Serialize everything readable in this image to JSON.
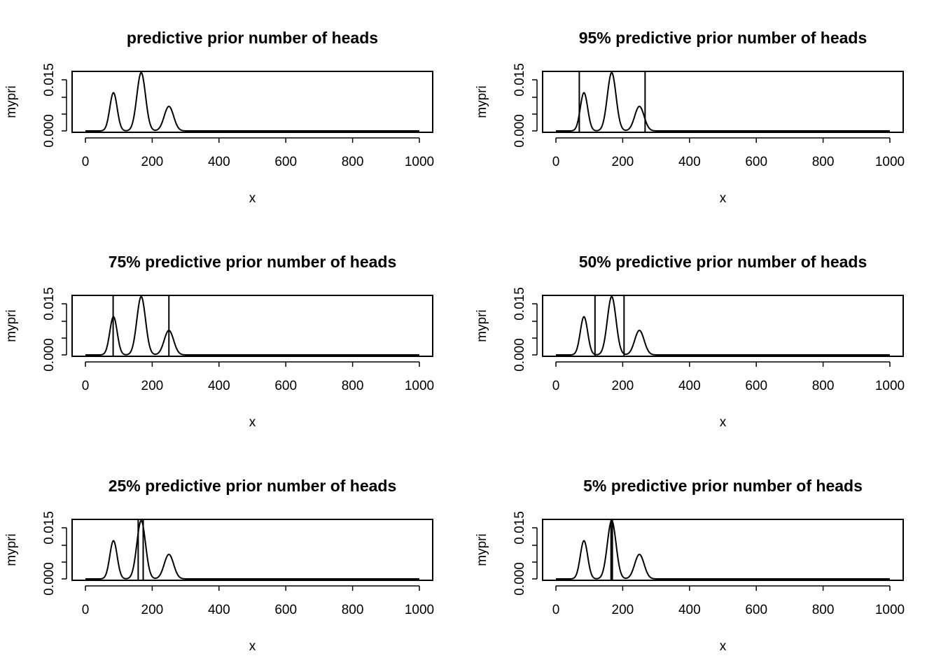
{
  "chart_data": [
    {
      "type": "line",
      "title": "predictive prior number of heads",
      "xlabel": "x",
      "ylabel": "mypri",
      "xlim": [
        0,
        1000
      ],
      "ylim": [
        0,
        0.017
      ],
      "xticks": [
        "0",
        "200",
        "400",
        "600",
        "800",
        "1000"
      ],
      "yticks": [
        "0.000",
        "0.015"
      ],
      "grid": false,
      "series": [
        {
          "peaks": [
            {
              "mu": 84,
              "sd": 11,
              "height": 0.0112
            },
            {
              "mu": 167,
              "sd": 13,
              "height": 0.0171
            },
            {
              "mu": 250,
              "sd": 14,
              "height": 0.0072
            }
          ]
        }
      ],
      "interval": []
    },
    {
      "type": "line",
      "title": "95% predictive prior number of heads",
      "xlabel": "x",
      "ylabel": "mypri",
      "xlim": [
        0,
        1000
      ],
      "ylim": [
        0,
        0.017
      ],
      "xticks": [
        "0",
        "200",
        "400",
        "600",
        "800",
        "1000"
      ],
      "yticks": [
        "0.000",
        "0.015"
      ],
      "grid": false,
      "series": [
        {
          "peaks": [
            {
              "mu": 84,
              "sd": 11,
              "height": 0.0112
            },
            {
              "mu": 167,
              "sd": 13,
              "height": 0.0171
            },
            {
              "mu": 250,
              "sd": 14,
              "height": 0.0072
            }
          ]
        }
      ],
      "interval": [
        70,
        267
      ]
    },
    {
      "type": "line",
      "title": "75% predictive prior number of heads",
      "xlabel": "x",
      "ylabel": "mypri",
      "xlim": [
        0,
        1000
      ],
      "ylim": [
        0,
        0.017
      ],
      "xticks": [
        "0",
        "200",
        "400",
        "600",
        "800",
        "1000"
      ],
      "yticks": [
        "0.000",
        "0.015"
      ],
      "grid": false,
      "series": [
        {
          "peaks": [
            {
              "mu": 84,
              "sd": 11,
              "height": 0.0112
            },
            {
              "mu": 167,
              "sd": 13,
              "height": 0.0171
            },
            {
              "mu": 250,
              "sd": 14,
              "height": 0.0072
            }
          ]
        }
      ],
      "interval": [
        83,
        250
      ]
    },
    {
      "type": "line",
      "title": "50% predictive prior number of heads",
      "xlabel": "x",
      "ylabel": "mypri",
      "xlim": [
        0,
        1000
      ],
      "ylim": [
        0,
        0.017
      ],
      "xticks": [
        "0",
        "200",
        "400",
        "600",
        "800",
        "1000"
      ],
      "yticks": [
        "0.000",
        "0.015"
      ],
      "grid": false,
      "series": [
        {
          "peaks": [
            {
              "mu": 84,
              "sd": 11,
              "height": 0.0112
            },
            {
              "mu": 167,
              "sd": 13,
              "height": 0.0171
            },
            {
              "mu": 250,
              "sd": 14,
              "height": 0.0072
            }
          ]
        }
      ],
      "interval": [
        117,
        204
      ]
    },
    {
      "type": "line",
      "title": "25% predictive prior number of heads",
      "xlabel": "x",
      "ylabel": "mypri",
      "xlim": [
        0,
        1000
      ],
      "ylim": [
        0,
        0.017
      ],
      "xticks": [
        "0",
        "200",
        "400",
        "600",
        "800",
        "1000"
      ],
      "yticks": [
        "0.000",
        "0.015"
      ],
      "grid": false,
      "series": [
        {
          "peaks": [
            {
              "mu": 84,
              "sd": 11,
              "height": 0.0112
            },
            {
              "mu": 167,
              "sd": 13,
              "height": 0.0171
            },
            {
              "mu": 250,
              "sd": 14,
              "height": 0.0072
            }
          ]
        }
      ],
      "interval": [
        158,
        173
      ]
    },
    {
      "type": "line",
      "title": "5% predictive prior number of heads",
      "xlabel": "x",
      "ylabel": "mypri",
      "xlim": [
        0,
        1000
      ],
      "ylim": [
        0,
        0.017
      ],
      "xticks": [
        "0",
        "200",
        "400",
        "600",
        "800",
        "1000"
      ],
      "yticks": [
        "0.000",
        "0.015"
      ],
      "grid": false,
      "series": [
        {
          "peaks": [
            {
              "mu": 84,
              "sd": 11,
              "height": 0.0112
            },
            {
              "mu": 167,
              "sd": 13,
              "height": 0.0171
            },
            {
              "mu": 250,
              "sd": 14,
              "height": 0.0072
            }
          ]
        }
      ],
      "interval": [
        165,
        169
      ]
    }
  ]
}
